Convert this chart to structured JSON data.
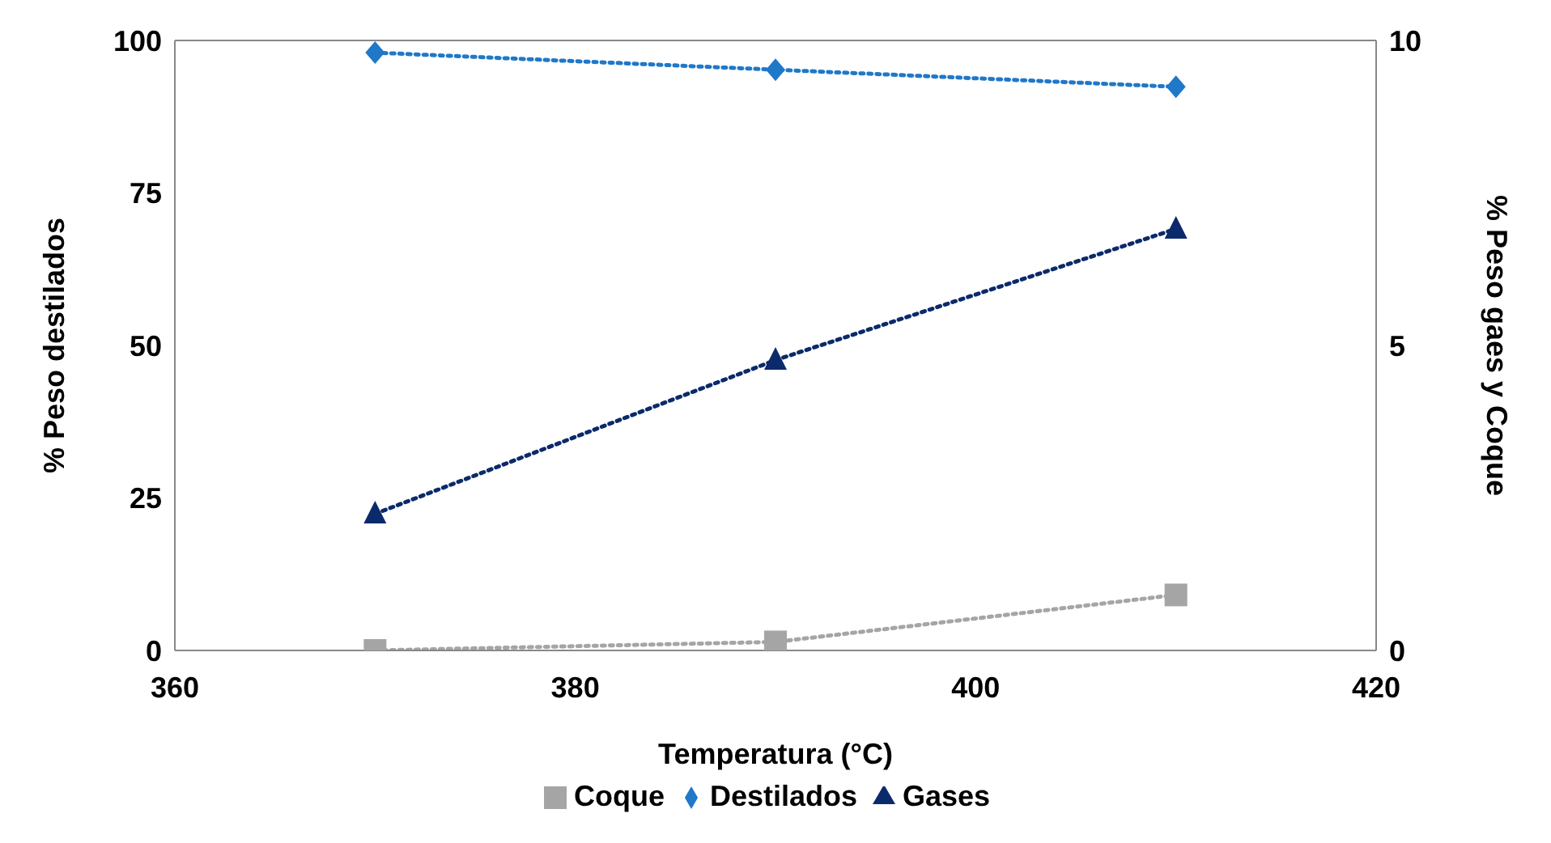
{
  "chart_data": {
    "type": "line",
    "xlabel": "Temperatura (°C)",
    "ylabel": "% Peso destilados",
    "y2label": "% Peso gaes y Coque",
    "x": [
      370,
      390,
      410
    ],
    "xlim": [
      360,
      420
    ],
    "xticks": [
      360,
      380,
      400,
      420
    ],
    "ylim": [
      0,
      100
    ],
    "yticks": [
      0,
      25,
      50,
      75,
      100
    ],
    "y2lim": [
      0,
      10
    ],
    "y2ticks": [
      0,
      5,
      10
    ],
    "grid": false,
    "legend": "bottom",
    "line_style": "dotted",
    "series": [
      {
        "name": "Destilados",
        "color": "#1f78c8",
        "marker": "diamond",
        "values": [
          98.0,
          95.2,
          92.4
        ]
      },
      {
        "name": "Coque",
        "color": "#a5a5a5",
        "marker": "square",
        "axis": "y2",
        "values": [
          0.0,
          0.14,
          0.91
        ]
      },
      {
        "name": "Gases",
        "color": "#0b2a6b",
        "marker": "triangle",
        "axis": "y2",
        "values": [
          2.24,
          4.76,
          6.91
        ]
      }
    ]
  }
}
